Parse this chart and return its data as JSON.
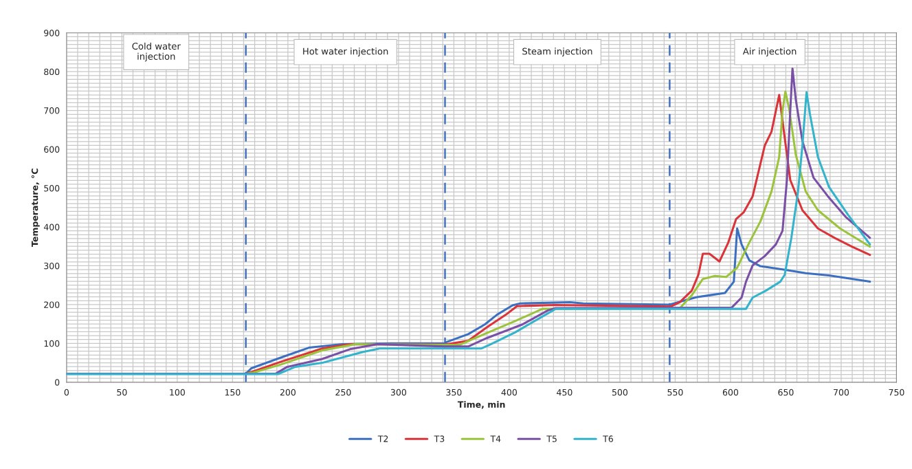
{
  "chart_data": {
    "type": "line",
    "xlabel": "Time, min",
    "ylabel": "Temperature, °C",
    "xlim": [
      0,
      750
    ],
    "xticks": [
      0,
      50,
      100,
      150,
      200,
      250,
      300,
      350,
      400,
      450,
      500,
      550,
      600,
      650,
      700,
      750
    ],
    "ylim": [
      0,
      900
    ],
    "yticks": [
      0,
      100,
      200,
      300,
      400,
      500,
      600,
      700,
      800,
      900
    ],
    "grid": true,
    "legend": "bottom",
    "marker": "none",
    "line_style": "solid",
    "ref_lines": [
      {
        "axis": "x",
        "value": 162,
        "color": "#4472c4",
        "line_style": "dashed"
      },
      {
        "axis": "x",
        "value": 342,
        "color": "#4472c4",
        "line_style": "dashed"
      },
      {
        "axis": "x",
        "value": 545,
        "color": "#4472c4",
        "line_style": "dashed"
      }
    ],
    "annotations": [
      "Cold water\ninjection",
      "Hot water injection",
      "Steam injection",
      "Air injection"
    ],
    "series": [
      {
        "name": "T2",
        "color": "#3d6fc1",
        "x": [
          0,
          162,
          167,
          194,
          219,
          249,
          294,
          342,
          343,
          363,
          378,
          389,
          403,
          410,
          455,
          467,
          545,
          569,
          581,
          595,
          603,
          606,
          610,
          617,
          627,
          648,
          668,
          689,
          726
        ],
        "values": [
          22,
          22,
          36,
          64,
          89,
          98,
          100,
          100,
          103,
          124,
          149,
          174,
          198,
          203,
          206,
          203,
          200,
          219,
          224,
          230,
          259,
          396,
          355,
          314,
          299,
          290,
          281,
          275,
          259
        ]
      },
      {
        "name": "T3",
        "color": "#d9343a",
        "x": [
          0,
          162,
          169,
          194,
          231,
          256,
          342,
          363,
          380,
          397,
          407,
          442,
          546,
          554,
          565,
          571,
          575,
          581,
          590,
          598,
          605,
          612,
          620,
          631,
          637,
          644,
          648,
          654,
          665,
          679,
          694,
          710,
          726
        ],
        "values": [
          22,
          22,
          28,
          53,
          87,
          98,
          97,
          107,
          142,
          174,
          196,
          199,
          195,
          206,
          236,
          277,
          331,
          331,
          311,
          360,
          420,
          438,
          479,
          610,
          645,
          740,
          651,
          521,
          443,
          396,
          372,
          349,
          328
        ]
      },
      {
        "name": "T4",
        "color": "#9bc43c",
        "x": [
          0,
          162,
          169,
          194,
          231,
          261,
          342,
          355,
          380,
          405,
          430,
          554,
          565,
          575,
          586,
          596,
          606,
          617,
          627,
          637,
          644,
          647,
          649.6,
          653,
          659,
          668,
          679,
          699,
          726
        ],
        "values": [
          22,
          22,
          25,
          46,
          82,
          98,
          96,
          96,
          127,
          157,
          189,
          190,
          224,
          266,
          274,
          271,
          295,
          360,
          414,
          491,
          580,
          699,
          749,
          704,
          586,
          491,
          443,
          396,
          349
        ]
      },
      {
        "name": "T5",
        "color": "#7a4fa6",
        "x": [
          0,
          189,
          199,
          231,
          256,
          281,
          342,
          363,
          380,
          412,
          435,
          442,
          601,
          610,
          614,
          620,
          631,
          641,
          647,
          651,
          654,
          656,
          659,
          665,
          675,
          688,
          704,
          726
        ],
        "values": [
          22,
          22,
          39,
          60,
          85,
          98,
          92,
          92,
          114,
          149,
          185,
          191,
          192,
          218,
          259,
          301,
          325,
          355,
          390,
          521,
          699,
          808,
          728,
          621,
          527,
          479,
          426,
          372
        ]
      },
      {
        "name": "T6",
        "color": "#33b3cc",
        "x": [
          0,
          191,
          206,
          231,
          268,
          283,
          375,
          382,
          405,
          442,
          614,
          620,
          632,
          645,
          649,
          655,
          661,
          665,
          668.7,
          672,
          679,
          689,
          706,
          726
        ],
        "values": [
          21,
          21,
          39,
          50,
          78,
          87,
          87,
          96,
          128,
          189,
          189,
          218,
          236,
          259,
          277,
          372,
          491,
          610,
          747,
          687,
          580,
          503,
          432,
          355
        ]
      }
    ]
  }
}
